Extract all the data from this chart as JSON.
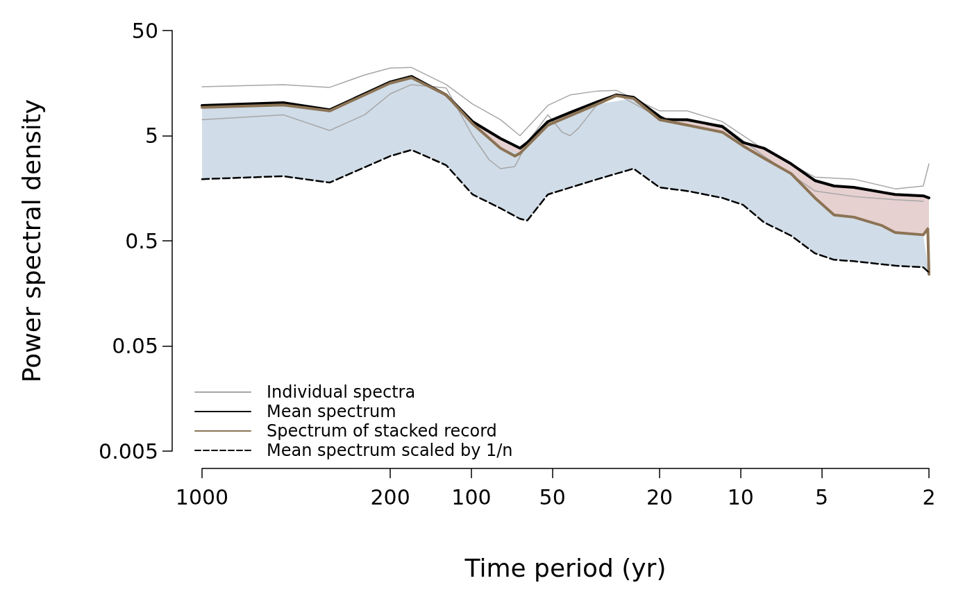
{
  "chart_data": {
    "type": "line",
    "xlabel": "Time period (yr)",
    "ylabel": "Power spectral density",
    "log": "xy",
    "xlim": [
      1000,
      2
    ],
    "xticks": [
      1000,
      200,
      100,
      50,
      20,
      10,
      5,
      2
    ],
    "ylim": [
      0.005,
      50
    ],
    "yticks": [
      0.005,
      0.05,
      0.5,
      5,
      50
    ],
    "grid": false,
    "legend": "bottom left",
    "marker": "none",
    "series": [
      {
        "name": "Individual spectra",
        "color": "#a6a6a6",
        "x": [
          1000,
          500,
          336,
          249,
          200,
          167,
          124,
          99,
          78,
          66,
          52,
          43,
          34,
          29,
          20,
          15.8,
          11.7,
          8.2,
          5.3,
          3.8,
          2.67,
          2.1,
          2
        ],
        "values": [
          14.6,
          15.3,
          14.4,
          18.9,
          22,
          22.3,
          15.3,
          10,
          7.1,
          5.0,
          9.7,
          12.2,
          13.3,
          13.5,
          8.6,
          8.6,
          6.8,
          3.7,
          2.02,
          1.93,
          1.56,
          1.66,
          2.7
        ]
      },
      {
        "color": "#a6a6a6",
        "x": [
          1000,
          500,
          336,
          249,
          200,
          167,
          124,
          99,
          86,
          78,
          69,
          62,
          52,
          46,
          43,
          40,
          34,
          29,
          20,
          11.7,
          8.2,
          5.3,
          3.8,
          2.67,
          2.1
        ],
        "values": [
          7.1,
          7.9,
          5.6,
          7.9,
          12.5,
          15.3,
          14.2,
          5.0,
          2.96,
          2.43,
          2.54,
          4.3,
          7.9,
          5.4,
          5.0,
          5.9,
          10,
          12.5,
          7.4,
          6.3,
          3.2,
          1.49,
          1.32,
          1.23,
          1.19
        ]
      },
      {
        "name": "Mean spectrum",
        "color": "#000000",
        "x": [
          1000,
          500,
          336,
          200,
          167,
          124,
          99,
          78,
          66,
          62,
          52,
          43,
          34,
          29,
          25,
          20,
          19,
          15.8,
          11.7,
          9.8,
          8.2,
          6.5,
          5.3,
          4.5,
          3.8,
          2.67,
          2.1,
          2
        ],
        "values": [
          9.7,
          10.3,
          8.8,
          16.2,
          18.3,
          12.2,
          6.8,
          4.7,
          3.8,
          4.3,
          6.8,
          8.3,
          10.5,
          12.2,
          11.6,
          7.6,
          7.1,
          7.1,
          6.1,
          4.3,
          3.8,
          2.7,
          1.87,
          1.66,
          1.61,
          1.38,
          1.34,
          1.28
        ]
      },
      {
        "name": "Spectrum of stacked record",
        "color": "#8b7355",
        "x": [
          1000,
          500,
          336,
          200,
          167,
          124,
          99,
          78,
          69,
          66,
          52,
          34,
          29,
          25,
          20,
          15.8,
          11.7,
          9.8,
          8.2,
          6.5,
          5.3,
          4.5,
          3.8,
          3.0,
          2.67,
          2.1,
          2.02,
          2
        ],
        "values": [
          9.3,
          9.8,
          8.6,
          15.8,
          17.8,
          12.2,
          6.5,
          3.8,
          3.2,
          3.4,
          6.3,
          10,
          12,
          11.3,
          7.1,
          6.3,
          5.4,
          4.0,
          3.05,
          2.18,
          1.28,
          0.88,
          0.84,
          0.7,
          0.6,
          0.57,
          0.65,
          0.24
        ],
        "lower": [
          9.3,
          9.8,
          8.6,
          15.8,
          17.8,
          12.2,
          6.5,
          3.8,
          3.2,
          3.4,
          6.3,
          10,
          12,
          11.3,
          7.1,
          6.3,
          5.4,
          4.0,
          3.05,
          2.18,
          1.28,
          0.88,
          0.84,
          0.7,
          0.6,
          0.57,
          0.65,
          0.24
        ],
        "upper": [
          9.7,
          10.3,
          8.8,
          16.2,
          18.3,
          12.2,
          6.8,
          4.7,
          4.0,
          3.8,
          6.8,
          10.5,
          12.2,
          11.6,
          7.6,
          7.1,
          6.1,
          4.3,
          3.8,
          2.7,
          1.87,
          1.66,
          1.61,
          1.45,
          1.38,
          1.34,
          1.3,
          1.28
        ]
      },
      {
        "name": "Mean spectrum scaled by 1/n",
        "color": "#000000",
        "line_style": "dashed",
        "x": [
          1000,
          500,
          336,
          200,
          167,
          124,
          99,
          78,
          66,
          62,
          52,
          34,
          25,
          20,
          15.8,
          11.7,
          9.8,
          8.2,
          6.5,
          5.3,
          4.5,
          3.8,
          2.67,
          2.1,
          2
        ],
        "values": [
          1.93,
          2.06,
          1.79,
          3.2,
          3.66,
          2.62,
          1.38,
          1.02,
          0.81,
          0.78,
          1.38,
          1.93,
          2.43,
          1.61,
          1.49,
          1.28,
          1.1,
          0.75,
          0.56,
          0.38,
          0.33,
          0.32,
          0.29,
          0.28,
          0.25
        ],
        "lower": [
          1.93,
          2.06,
          1.79,
          3.2,
          3.66,
          2.62,
          1.38,
          1.02,
          0.81,
          0.78,
          1.38,
          1.93,
          2.43,
          1.61,
          1.49,
          1.28,
          1.1,
          0.75,
          0.56,
          0.38,
          0.33,
          0.32,
          0.29,
          0.28,
          0.25
        ],
        "upper": [
          9.3,
          9.8,
          8.6,
          15.8,
          17.8,
          12.2,
          6.5,
          3.8,
          3.4,
          4.2,
          6.3,
          10,
          11.3,
          7.1,
          6.3,
          5.4,
          4.0,
          3.05,
          2.18,
          1.28,
          0.88,
          0.84,
          0.6,
          0.57,
          0.24
        ]
      }
    ]
  }
}
